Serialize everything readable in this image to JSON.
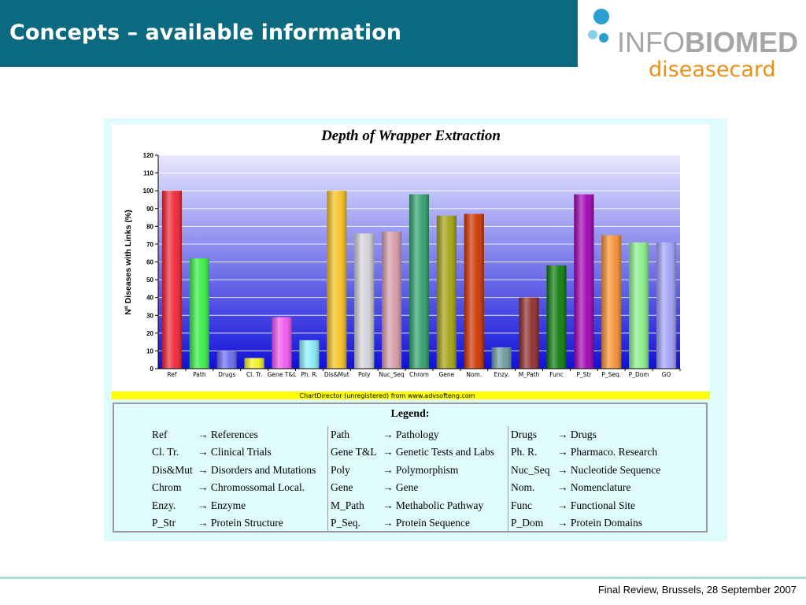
{
  "slide": {
    "title": "Concepts – available information",
    "footer": "Final Review, Brussels, 28 September 2007"
  },
  "logo": {
    "text_info": "INFO",
    "text_biomed": "BIOMED",
    "text_diseasecard": "diseasecard"
  },
  "colors": {
    "header": "#0b6a80",
    "panel": "#dffbfb",
    "ribbon": "#ffff00",
    "logo_blue": "#2aa0d0",
    "logo_gray": "#a6a6a6",
    "logo_orange": "#e8901a"
  },
  "chart_data": {
    "type": "bar",
    "title": "Depth of Wrapper Extraction",
    "ylabel": "Nº Diseases with Links (%)",
    "xlabel": "",
    "ylim": [
      0,
      120
    ],
    "yticks": [
      0,
      10,
      20,
      30,
      40,
      50,
      60,
      70,
      80,
      90,
      100,
      110,
      120
    ],
    "grid": true,
    "categories": [
      "Ref",
      "Path",
      "Drugs",
      "Cl. Tr.",
      "Gene T&L",
      "Ph. R.",
      "Dis&Mut",
      "Poly",
      "Nuc_Seq",
      "Chrom",
      "Gene",
      "Nom.",
      "Enzy.",
      "M_Path",
      "Func",
      "P_Str",
      "P_Seq.",
      "P_Dom",
      "GO"
    ],
    "values": [
      100,
      62,
      10,
      6,
      29,
      16,
      100,
      76,
      77,
      98,
      86,
      87,
      12,
      40,
      58,
      98,
      75,
      71,
      71
    ],
    "bar_colors": [
      "#ee2233",
      "#33ee44",
      "#6a6af0",
      "#f5f020",
      "#f055f0",
      "#88eef6",
      "#f5c020",
      "#d0d0d8",
      "#d49aa6",
      "#2e9e6e",
      "#a0a010",
      "#cc3300",
      "#6a9a9e",
      "#8e2a2a",
      "#0a7a0a",
      "#a000b0",
      "#f59030",
      "#88ee88",
      "#a0a0f8"
    ],
    "footnote": "ChartDirector (unregistered) from www.advsofteng.com"
  },
  "legend": {
    "title": "Legend:",
    "columns": [
      [
        {
          "abbr": "Ref",
          "full": "References"
        },
        {
          "abbr": "Cl. Tr.",
          "full": "Clinical Trials"
        },
        {
          "abbr": "Dis&Mut",
          "full": "Disorders and Mutations"
        },
        {
          "abbr": "Chrom",
          "full": "Chromossomal Local."
        },
        {
          "abbr": "Enzy.",
          "full": "Enzyme"
        },
        {
          "abbr": "P_Str",
          "full": "Protein Structure"
        }
      ],
      [
        {
          "abbr": "Path",
          "full": "Pathology"
        },
        {
          "abbr": "Gene T&L",
          "full": "Genetic Tests and Labs"
        },
        {
          "abbr": "Poly",
          "full": "Polymorphism"
        },
        {
          "abbr": "Gene",
          "full": "Gene"
        },
        {
          "abbr": "M_Path",
          "full": "Methabolic Pathway"
        },
        {
          "abbr": "P_Seq.",
          "full": "Protein Sequence"
        }
      ],
      [
        {
          "abbr": "Drugs",
          "full": "Drugs"
        },
        {
          "abbr": "Ph. R.",
          "full": "Pharmaco. Research"
        },
        {
          "abbr": "Nuc_Seq",
          "full": "Nucleotide Sequence"
        },
        {
          "abbr": "Nom.",
          "full": "Nomenclature"
        },
        {
          "abbr": "Func",
          "full": "Functional Site"
        },
        {
          "abbr": "P_Dom",
          "full": "Protein Domains"
        }
      ]
    ]
  }
}
